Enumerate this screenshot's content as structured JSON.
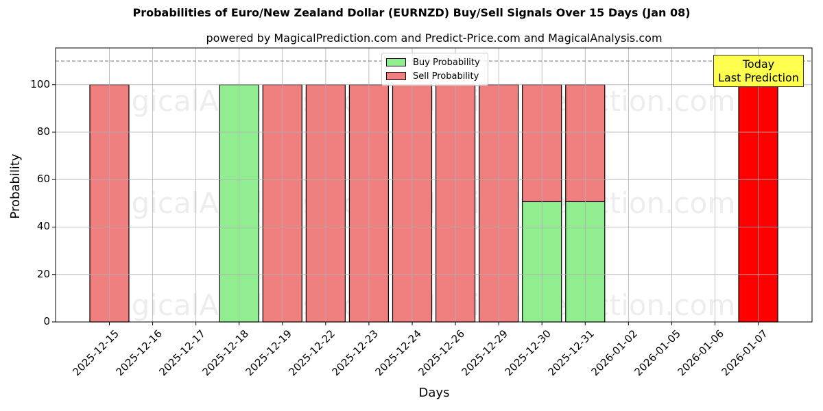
{
  "chart_data": {
    "type": "bar",
    "stacked": true,
    "title": "Probabilities of Euro/New Zealand Dollar (EURNZD) Buy/Sell Signals Over 15 Days (Jan 08)",
    "subtitle": "powered by MagicalPrediction.com and Predict-Price.com and MagicalAnalysis.com",
    "xlabel": "Days",
    "ylabel": "Probability",
    "ylim": [
      0,
      115.5
    ],
    "yticks": [
      0,
      20,
      40,
      60,
      80,
      100
    ],
    "grid": true,
    "reference_line": {
      "y": 110,
      "style": "dashed",
      "color": "#808080"
    },
    "categories": [
      "2025-12-15",
      "2025-12-16",
      "2025-12-17",
      "2025-12-18",
      "2025-12-19",
      "2025-12-22",
      "2025-12-23",
      "2025-12-24",
      "2025-12-26",
      "2025-12-29",
      "2025-12-30",
      "2025-12-31",
      "2026-01-02",
      "2026-01-05",
      "2026-01-06",
      "2026-01-07"
    ],
    "series": [
      {
        "name": "Buy Probability",
        "color": "#90ee90",
        "values": [
          0,
          0,
          0,
          100,
          0,
          0,
          0,
          0,
          0,
          0,
          50.7,
          50.7,
          0,
          0,
          0,
          0
        ]
      },
      {
        "name": "Sell Probability",
        "color": "#f08080",
        "values": [
          100,
          0,
          0,
          0,
          100,
          100,
          100,
          100,
          100,
          100,
          49.3,
          49.3,
          0,
          0,
          0,
          0
        ]
      },
      {
        "name": "Today",
        "color": "#ff0000",
        "values": [
          0,
          0,
          0,
          0,
          0,
          0,
          0,
          0,
          0,
          0,
          0,
          0,
          0,
          0,
          0,
          100
        ]
      }
    ],
    "legend": {
      "position": "upper center",
      "entries": [
        "Buy Probability",
        "Sell Probability"
      ]
    },
    "annotation": {
      "text_line1": "Today",
      "text_line2": "Last Prediction",
      "background": "#ffff4d"
    },
    "watermarks": [
      "MagicalAnalysis.com",
      "MagicalPrediction.com"
    ]
  }
}
